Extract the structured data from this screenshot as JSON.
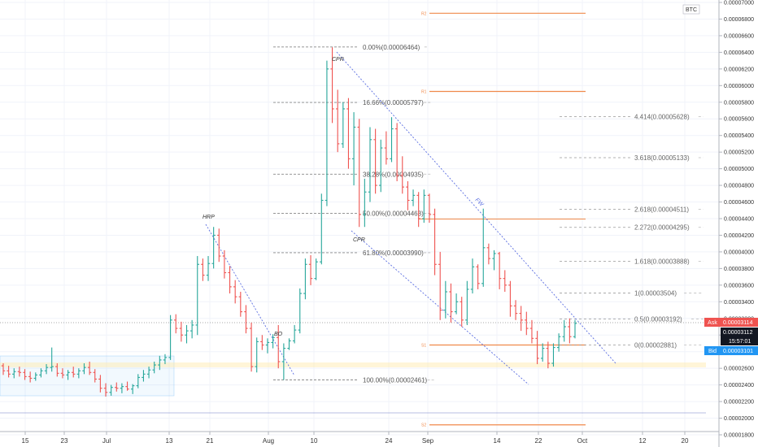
{
  "chart_data": {
    "type": "ohlc",
    "currency": "BTC",
    "y_ticks": [
      "0.00007000",
      "0.00006800",
      "0.00006600",
      "0.00006400",
      "0.00006200",
      "0.00006000",
      "0.00005800",
      "0.00005600",
      "0.00005400",
      "0.00005200",
      "0.00005000",
      "0.00004800",
      "0.00004600",
      "0.00004400",
      "0.00004200",
      "0.00004000",
      "0.00003800",
      "0.00003600",
      "0.00003400",
      "0.00003200",
      "0.00003000",
      "0.00002800",
      "0.00002600",
      "0.00002400",
      "0.00002200",
      "0.00002000",
      "0.00001800"
    ],
    "y_tick_values": [
      7e-05,
      6.8e-05,
      6.6e-05,
      6.4e-05,
      6.2e-05,
      6e-05,
      5.8e-05,
      5.6e-05,
      5.4e-05,
      5.2e-05,
      5e-05,
      4.8e-05,
      4.6e-05,
      4.4e-05,
      4.2e-05,
      4e-05,
      3.8e-05,
      3.6e-05,
      3.4e-05,
      3.2e-05,
      3e-05,
      2.8e-05,
      2.6e-05,
      2.4e-05,
      2.2e-05,
      2e-05,
      1.8e-05
    ],
    "x_ticks": [
      "15",
      "23",
      "Jul",
      "13",
      "21",
      "Aug",
      "10",
      "24",
      "Sep",
      "14",
      "22",
      "Oct",
      "12",
      "20"
    ],
    "candles": [
      [
        2.63e-05,
        2.66e-05,
        2.52e-05,
        2.57e-05
      ],
      [
        2.57e-05,
        2.63e-05,
        2.49e-05,
        2.53e-05
      ],
      [
        2.53e-05,
        2.6e-05,
        2.48e-05,
        2.56e-05
      ],
      [
        2.56e-05,
        2.62e-05,
        2.5e-05,
        2.55e-05
      ],
      [
        2.55e-05,
        2.59e-05,
        2.46e-05,
        2.5e-05
      ],
      [
        2.5e-05,
        2.56e-05,
        2.43e-05,
        2.48e-05
      ],
      [
        2.48e-05,
        2.55e-05,
        2.45e-05,
        2.52e-05
      ],
      [
        2.52e-05,
        2.6e-05,
        2.49e-05,
        2.57e-05
      ],
      [
        2.57e-05,
        2.65e-05,
        2.53e-05,
        2.61e-05
      ],
      [
        2.61e-05,
        2.85e-05,
        2.56e-05,
        2.62e-05
      ],
      [
        2.62e-05,
        2.66e-05,
        2.5e-05,
        2.54e-05
      ],
      [
        2.54e-05,
        2.6e-05,
        2.48e-05,
        2.52e-05
      ],
      [
        2.52e-05,
        2.58e-05,
        2.46e-05,
        2.55e-05
      ],
      [
        2.55e-05,
        2.62e-05,
        2.49e-05,
        2.53e-05
      ],
      [
        2.53e-05,
        2.6e-05,
        2.48e-05,
        2.57e-05
      ],
      [
        2.57e-05,
        2.66e-05,
        2.53e-05,
        2.61e-05
      ],
      [
        2.61e-05,
        2.68e-05,
        2.52e-05,
        2.55e-05
      ],
      [
        2.55e-05,
        2.59e-05,
        2.43e-05,
        2.47e-05
      ],
      [
        2.47e-05,
        2.52e-05,
        2.31e-05,
        2.36e-05
      ],
      [
        2.36e-05,
        2.42e-05,
        2.26e-05,
        2.31e-05
      ],
      [
        2.31e-05,
        2.4e-05,
        2.27e-05,
        2.37e-05
      ],
      [
        2.37e-05,
        2.43e-05,
        2.32e-05,
        2.36e-05
      ],
      [
        2.36e-05,
        2.42e-05,
        2.3e-05,
        2.38e-05
      ],
      [
        2.38e-05,
        2.44e-05,
        2.33e-05,
        2.35e-05
      ],
      [
        2.35e-05,
        2.41e-05,
        2.29e-05,
        2.39e-05
      ],
      [
        2.39e-05,
        2.53e-05,
        2.36e-05,
        2.49e-05
      ],
      [
        2.49e-05,
        2.58e-05,
        2.44e-05,
        2.53e-05
      ],
      [
        2.53e-05,
        2.62e-05,
        2.48e-05,
        2.58e-05
      ],
      [
        2.58e-05,
        2.68e-05,
        2.54e-05,
        2.64e-05
      ],
      [
        2.64e-05,
        2.75e-05,
        2.58e-05,
        2.7e-05
      ],
      [
        2.7e-05,
        2.77e-05,
        2.65e-05,
        2.73e-05
      ],
      [
        2.73e-05,
        3.24e-05,
        2.7e-05,
        3.18e-05
      ],
      [
        3.18e-05,
        3.25e-05,
        3.02e-05,
        3.08e-05
      ],
      [
        3.08e-05,
        3.16e-05,
        2.92e-05,
        3e-05
      ],
      [
        3e-05,
        3.12e-05,
        2.9e-05,
        3.05e-05
      ],
      [
        3.05e-05,
        3.18e-05,
        2.96e-05,
        3.12e-05
      ],
      [
        3.12e-05,
        3.95e-05,
        3e-05,
        3.85e-05
      ],
      [
        3.85e-05,
        3.92e-05,
        3.65e-05,
        3.72e-05
      ],
      [
        3.72e-05,
        3.95e-05,
        3.65e-05,
        3.86e-05
      ],
      [
        3.86e-05,
        4.3e-05,
        3.8e-05,
        4.2e-05
      ],
      [
        4.2e-05,
        4.28e-05,
        3.88e-05,
        3.95e-05
      ],
      [
        3.95e-05,
        4.02e-05,
        3.68e-05,
        3.75e-05
      ],
      [
        3.75e-05,
        3.83e-05,
        3.5e-05,
        3.58e-05
      ],
      [
        3.58e-05,
        3.66e-05,
        3.38e-05,
        3.46e-05
      ],
      [
        3.46e-05,
        3.52e-05,
        3.22e-05,
        3.28e-05
      ],
      [
        3.28e-05,
        3.36e-05,
        3.02e-05,
        3.08e-05
      ],
      [
        3.08e-05,
        3.15e-05,
        2.56e-05,
        2.62e-05
      ],
      [
        2.62e-05,
        2.97e-05,
        2.55e-05,
        2.92e-05
      ],
      [
        2.92e-05,
        3e-05,
        2.82e-05,
        2.88e-05
      ],
      [
        2.88e-05,
        2.96e-05,
        2.78e-05,
        2.91e-05
      ],
      [
        2.91e-05,
        3.01e-05,
        2.84e-05,
        2.97e-05
      ],
      [
        2.97e-05,
        3.12e-05,
        2.6e-05,
        2.68e-05
      ],
      [
        2.68e-05,
        2.9e-05,
        2.46e-05,
        2.84e-05
      ],
      [
        2.84e-05,
        2.96e-05,
        2.82e-05,
        2.93e-05
      ],
      [
        2.93e-05,
        3.12e-05,
        2.9e-05,
        3.06e-05
      ],
      [
        3.06e-05,
        3.56e-05,
        3.02e-05,
        3.5e-05
      ],
      [
        3.5e-05,
        3.92e-05,
        3.43e-05,
        3.85e-05
      ],
      [
        3.85e-05,
        3.96e-05,
        3.6e-05,
        3.68e-05
      ],
      [
        3.68e-05,
        3.92e-05,
        3.66e-05,
        3.88e-05
      ],
      [
        3.88e-05,
        4.7e-05,
        3.85e-05,
        4.62e-05
      ],
      [
        4.62e-05,
        6.3e-05,
        4.55e-05,
        6.2e-05
      ],
      [
        6.2e-05,
        6.46e-05,
        5.55e-05,
        5.72e-05
      ],
      [
        5.72e-05,
        5.95e-05,
        5.2e-05,
        5.3e-05
      ],
      [
        5.3e-05,
        5.8e-05,
        5.25e-05,
        5.72e-05
      ],
      [
        5.72e-05,
        5.85e-05,
        5e-05,
        5.12e-05
      ],
      [
        5.12e-05,
        5.68e-05,
        4.8e-05,
        5.5e-05
      ],
      [
        5.5e-05,
        5.6e-05,
        4.3e-05,
        4.45e-05
      ],
      [
        4.45e-05,
        4.88e-05,
        4.3e-05,
        4.72e-05
      ],
      [
        4.72e-05,
        5.5e-05,
        4.6e-05,
        5.35e-05
      ],
      [
        5.35e-05,
        5.48e-05,
        4.7e-05,
        4.8e-05
      ],
      [
        4.8e-05,
        5.35e-05,
        4.72e-05,
        5.25e-05
      ],
      [
        5.25e-05,
        5.45e-05,
        5.05e-05,
        5.12e-05
      ],
      [
        5.12e-05,
        5.62e-05,
        5.08e-05,
        5.48e-05
      ],
      [
        5.48e-05,
        5.55e-05,
        4.85e-05,
        4.92e-05
      ],
      [
        4.92e-05,
        5.15e-05,
        4.7e-05,
        4.78e-05
      ],
      [
        4.78e-05,
        4.85e-05,
        4.5e-05,
        4.62e-05
      ],
      [
        4.62e-05,
        4.75e-05,
        4.55e-05,
        4.68e-05
      ],
      [
        4.68e-05,
        4.72e-05,
        4.3e-05,
        4.4e-05
      ],
      [
        4.4e-05,
        4.75e-05,
        4.35e-05,
        4.68e-05
      ],
      [
        4.68e-05,
        4.7e-05,
        4.35e-05,
        4.45e-05
      ],
      [
        4.45e-05,
        4.52e-05,
        3.72e-05,
        3.85e-05
      ],
      [
        3.85e-05,
        4e-05,
        3.18e-05,
        3.3e-05
      ],
      [
        3.3e-05,
        3.65e-05,
        3.2e-05,
        3.52e-05
      ],
      [
        3.52e-05,
        3.62e-05,
        3.15e-05,
        3.28e-05
      ],
      [
        3.28e-05,
        3.5e-05,
        3.25e-05,
        3.4e-05
      ],
      [
        3.4e-05,
        3.46e-05,
        3.1e-05,
        3.18e-05
      ],
      [
        3.18e-05,
        3.65e-05,
        3.12e-05,
        3.55e-05
      ],
      [
        3.55e-05,
        3.92e-05,
        3.5e-05,
        3.82e-05
      ],
      [
        3.82e-05,
        3.85e-05,
        3.55e-05,
        3.62e-05
      ],
      [
        3.62e-05,
        4.52e-05,
        3.58e-05,
        4.05e-05
      ],
      [
        4.05e-05,
        4.1e-05,
        3.85e-05,
        3.92e-05
      ],
      [
        3.92e-05,
        4.02e-05,
        3.78e-05,
        3.98e-05
      ],
      [
        3.98e-05,
        4e-05,
        3.55e-05,
        3.68e-05
      ],
      [
        3.68e-05,
        3.78e-05,
        3.52e-05,
        3.6e-05
      ],
      [
        3.6e-05,
        3.65e-05,
        3.22e-05,
        3.35e-05
      ],
      [
        3.35e-05,
        3.42e-05,
        3.18e-05,
        3.26e-05
      ],
      [
        3.26e-05,
        3.35e-05,
        3.05e-05,
        3.18e-05
      ],
      [
        3.18e-05,
        3.28e-05,
        3e-05,
        3.08e-05
      ],
      [
        3.08e-05,
        3.18e-05,
        2.9e-05,
        2.96e-05
      ],
      [
        2.96e-05,
        3.05e-05,
        2.65e-05,
        2.72e-05
      ],
      [
        2.72e-05,
        2.9e-05,
        2.68e-05,
        2.84e-05
      ],
      [
        2.84e-05,
        2.92e-05,
        2.6e-05,
        2.66e-05
      ],
      [
        2.66e-05,
        2.9e-05,
        2.62e-05,
        2.85e-05
      ],
      [
        2.85e-05,
        3.02e-05,
        2.8e-05,
        2.98e-05
      ],
      [
        2.98e-05,
        3.18e-05,
        2.92e-05,
        3.1e-05
      ],
      [
        3.1e-05,
        3.2e-05,
        2.9e-05,
        2.98e-05
      ],
      [
        2.98e-05,
        3.18e-05,
        2.96e-05,
        3.14e-05
      ]
    ],
    "fib_levels": [
      {
        "label": "0.00%(0.00006464)",
        "value": 6.464e-05
      },
      {
        "label": "16.66%(0.00005797)",
        "value": 5.797e-05
      },
      {
        "label": "38.28%(0.00004935)",
        "value": 4.935e-05
      },
      {
        "label": "50.00%(0.00004463)",
        "value": 4.463e-05
      },
      {
        "label": "61.80%(0.00003990)",
        "value": 3.99e-05
      },
      {
        "label": "100.00%(0.00002461)",
        "value": 2.461e-05
      }
    ],
    "ext_levels": [
      {
        "label": "4.414(0.00005628)",
        "value": 5.628e-05
      },
      {
        "label": "3.618(0.00005133)",
        "value": 5.133e-05
      },
      {
        "label": "2.618(0.00004511)",
        "value": 4.511e-05
      },
      {
        "label": "2.272(0.00004295)",
        "value": 4.295e-05
      },
      {
        "label": "1.618(0.00003888)",
        "value": 3.888e-05
      },
      {
        "label": "1(0.00003504)",
        "value": 3.504e-05
      },
      {
        "label": "0.5(0.00003192)",
        "value": 3.192e-05
      },
      {
        "label": "0(0.00002881)",
        "value": 2.881e-05
      }
    ],
    "range_lines": [
      {
        "label": "R2",
        "value": 6.87e-05
      },
      {
        "label": "R1",
        "value": 5.93e-05
      },
      {
        "label": "S1",
        "value": 2.88e-05
      },
      {
        "label": "S2",
        "value": 1.92e-05
      }
    ],
    "annotations": [
      "HRP",
      "CPR",
      "CPR",
      "BO",
      "FW"
    ],
    "price_tags": {
      "ask_label": "Ask",
      "ask": "0.00003114",
      "last": "0.00003112",
      "time": "15:57:01",
      "bid_label": "Bid",
      "bid": "0.00003101"
    },
    "colors": {
      "up": "#26a69a",
      "down": "#ef5350",
      "fib": "#888888",
      "range": "#f08a4b",
      "trend": "#5b6ee1",
      "ask": "#ef5350",
      "bid": "#2196f3"
    }
  }
}
